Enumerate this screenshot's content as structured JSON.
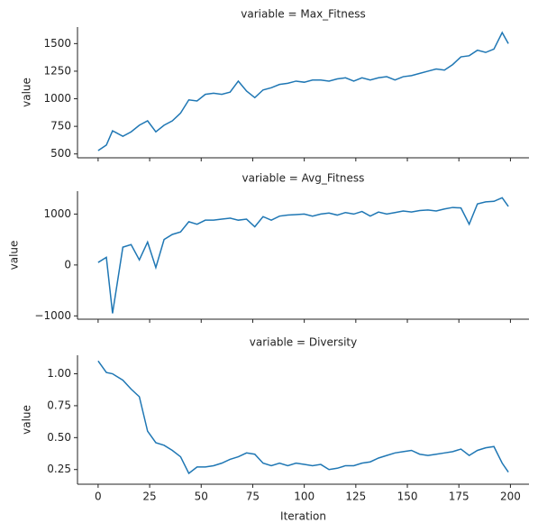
{
  "chart_data": [
    {
      "type": "line",
      "title": "variable = Max_Fitness",
      "ylabel": "value",
      "x": [
        0,
        4,
        7,
        12,
        16,
        20,
        24,
        28,
        32,
        36,
        40,
        44,
        48,
        52,
        56,
        60,
        64,
        68,
        72,
        76,
        80,
        84,
        88,
        92,
        96,
        100,
        104,
        108,
        112,
        116,
        120,
        124,
        128,
        132,
        136,
        140,
        144,
        148,
        152,
        156,
        160,
        164,
        168,
        172,
        176,
        180,
        184,
        188,
        192,
        196,
        199
      ],
      "series": [
        {
          "name": "Max_Fitness",
          "color": "#1f77b4",
          "values": [
            530,
            580,
            710,
            660,
            700,
            760,
            800,
            700,
            760,
            800,
            870,
            990,
            980,
            1040,
            1050,
            1040,
            1060,
            1160,
            1070,
            1010,
            1080,
            1100,
            1130,
            1140,
            1160,
            1150,
            1170,
            1170,
            1160,
            1180,
            1190,
            1160,
            1190,
            1170,
            1190,
            1200,
            1170,
            1200,
            1210,
            1230,
            1250,
            1270,
            1260,
            1310,
            1380,
            1390,
            1440,
            1420,
            1450,
            1600,
            1500
          ]
        }
      ],
      "xlim": [
        -10,
        209
      ],
      "xticks": [
        0,
        25,
        50,
        75,
        100,
        125,
        150,
        175,
        200
      ],
      "ylim": [
        465,
        1650
      ],
      "yticks": [
        500,
        750,
        1000,
        1250,
        1500
      ]
    },
    {
      "type": "line",
      "title": "variable = Avg_Fitness",
      "ylabel": "value",
      "x": [
        0,
        4,
        7,
        12,
        16,
        20,
        24,
        28,
        32,
        36,
        40,
        44,
        48,
        52,
        56,
        60,
        64,
        68,
        72,
        76,
        80,
        84,
        88,
        92,
        96,
        100,
        104,
        108,
        112,
        116,
        120,
        124,
        128,
        132,
        136,
        140,
        144,
        148,
        152,
        156,
        160,
        164,
        168,
        172,
        176,
        180,
        184,
        188,
        192,
        196,
        199
      ],
      "series": [
        {
          "name": "Avg_Fitness",
          "color": "#1f77b4",
          "values": [
            50,
            150,
            -950,
            350,
            400,
            100,
            450,
            -50,
            500,
            600,
            650,
            850,
            800,
            880,
            880,
            900,
            920,
            880,
            900,
            750,
            950,
            880,
            960,
            980,
            990,
            1000,
            960,
            1000,
            1020,
            980,
            1030,
            1000,
            1050,
            960,
            1040,
            1000,
            1030,
            1060,
            1040,
            1070,
            1080,
            1060,
            1100,
            1130,
            1120,
            800,
            1200,
            1240,
            1250,
            1320,
            1150
          ]
        }
      ],
      "xlim": [
        -10,
        209
      ],
      "xticks": [
        0,
        25,
        50,
        75,
        100,
        125,
        150,
        175,
        200
      ],
      "ylim": [
        -1065,
        1450
      ],
      "yticks": [
        {
          "value": -1000,
          "label": "−1000"
        },
        0,
        1000
      ]
    },
    {
      "type": "line",
      "title": "variable = Diversity",
      "ylabel": "value",
      "xlabel": "Iteration",
      "x": [
        0,
        4,
        7,
        12,
        16,
        20,
        24,
        28,
        32,
        36,
        40,
        44,
        48,
        52,
        56,
        60,
        64,
        68,
        72,
        76,
        80,
        84,
        88,
        92,
        96,
        100,
        104,
        108,
        112,
        116,
        120,
        124,
        128,
        132,
        136,
        140,
        144,
        148,
        152,
        156,
        160,
        164,
        168,
        172,
        176,
        180,
        184,
        188,
        192,
        196,
        199
      ],
      "series": [
        {
          "name": "Diversity",
          "color": "#1f77b4",
          "values": [
            1.1,
            1.01,
            1.0,
            0.95,
            0.88,
            0.82,
            0.55,
            0.46,
            0.44,
            0.4,
            0.35,
            0.22,
            0.27,
            0.27,
            0.28,
            0.3,
            0.33,
            0.35,
            0.38,
            0.37,
            0.3,
            0.28,
            0.3,
            0.28,
            0.3,
            0.29,
            0.28,
            0.29,
            0.25,
            0.26,
            0.28,
            0.28,
            0.3,
            0.31,
            0.34,
            0.36,
            0.38,
            0.39,
            0.4,
            0.37,
            0.36,
            0.37,
            0.38,
            0.39,
            0.41,
            0.36,
            0.4,
            0.42,
            0.43,
            0.3,
            0.23
          ]
        }
      ],
      "xlim": [
        -10,
        209
      ],
      "xticks": [
        0,
        25,
        50,
        75,
        100,
        125,
        150,
        175,
        200
      ],
      "ylim": [
        0.135,
        1.145
      ],
      "yticks": [
        {
          "value": 0.25,
          "label": "0.25"
        },
        {
          "value": 0.5,
          "label": "0.50"
        },
        {
          "value": 0.75,
          "label": "0.75"
        },
        {
          "value": 1.0,
          "label": "1.00"
        }
      ]
    }
  ]
}
